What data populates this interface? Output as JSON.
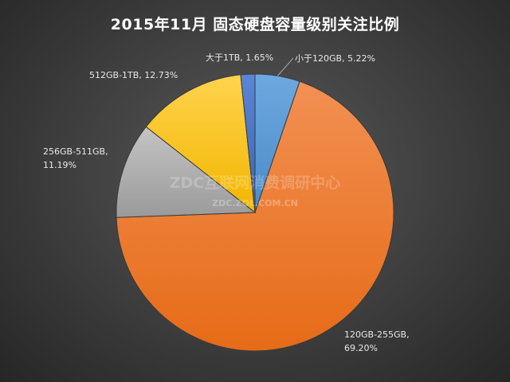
{
  "chart_data": {
    "type": "pie",
    "title": "2015年11月  固态硬盘容量级别关注比例",
    "slices": [
      {
        "label": "小于120GB",
        "value": 5.22,
        "display": "5.22%",
        "color": "#5b9bd5"
      },
      {
        "label": "120GB-255GB",
        "value": 69.2,
        "display": "69.20%",
        "color": "#ed7d31"
      },
      {
        "label": "256GB-511GB",
        "value": 11.19,
        "display": "11.19%",
        "color": "#a5a5a5"
      },
      {
        "label": "512GB-1TB",
        "value": 12.73,
        "display": "12.73%",
        "color": "#ffc000"
      },
      {
        "label": "大于1TB",
        "value": 1.65,
        "display": "1.65%",
        "color": "#4472c4"
      }
    ],
    "start_angle": "12 o'clock",
    "direction": "clockwise",
    "legend": "none (data labels)"
  },
  "watermark": {
    "main": "ZDC互联网消费调研中心",
    "sub": "ZDC.ZOL.COM.CN"
  }
}
